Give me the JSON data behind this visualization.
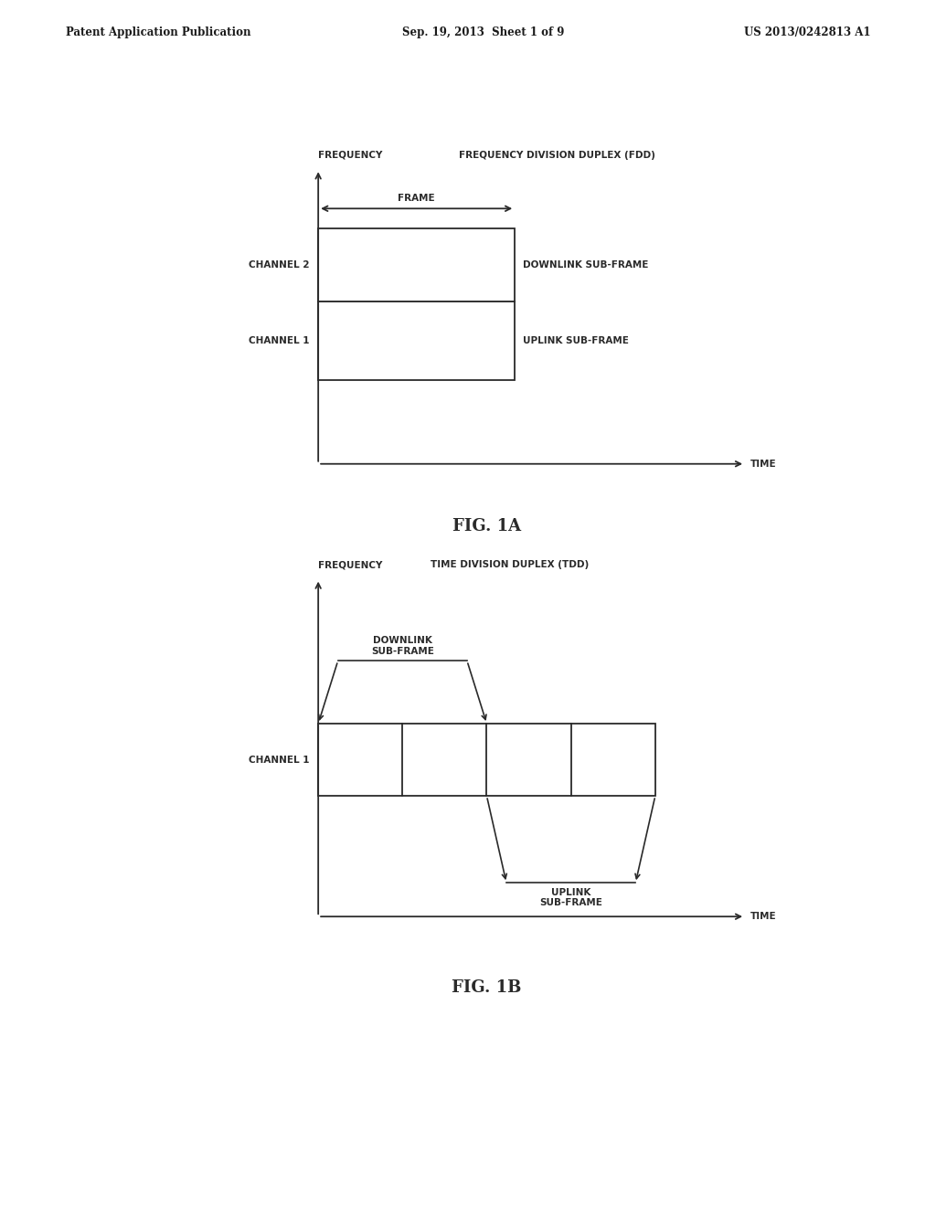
{
  "bg_color": "#ffffff",
  "text_color": "#1a1a1a",
  "header_left": "Patent Application Publication",
  "header_center": "Sep. 19, 2013  Sheet 1 of 9",
  "header_right": "US 2013/0242813 A1",
  "fig1a_title": "FREQUENCY DIVISION DUPLEX (FDD)",
  "fig1a_label": "FIG. 1A",
  "fig1a_freq_label": "FREQUENCY",
  "fig1a_time_label": "TIME",
  "fig1a_frame_label": "FRAME",
  "fig1a_channel2_label": "CHANNEL 2",
  "fig1a_channel1_label": "CHANNEL 1",
  "fig1a_downlink_label": "DOWNLINK SUB-FRAME",
  "fig1a_uplink_label": "UPLINK SUB-FRAME",
  "fig1b_title": "TIME DIVISION DUPLEX (TDD)",
  "fig1b_label": "FIG. 1B",
  "fig1b_freq_label": "FREQUENCY",
  "fig1b_time_label": "TIME",
  "fig1b_channel1_label": "CHANNEL 1",
  "fig1b_downlink_label": "DOWNLINK\nSUB-FRAME",
  "fig1b_uplink_label": "UPLINK\nSUB-FRAME",
  "line_color": "#2a2a2a",
  "box_edge_color": "#2a2a2a",
  "font_size_header": 8.5,
  "font_size_label": 7.5,
  "font_size_fig": 13
}
